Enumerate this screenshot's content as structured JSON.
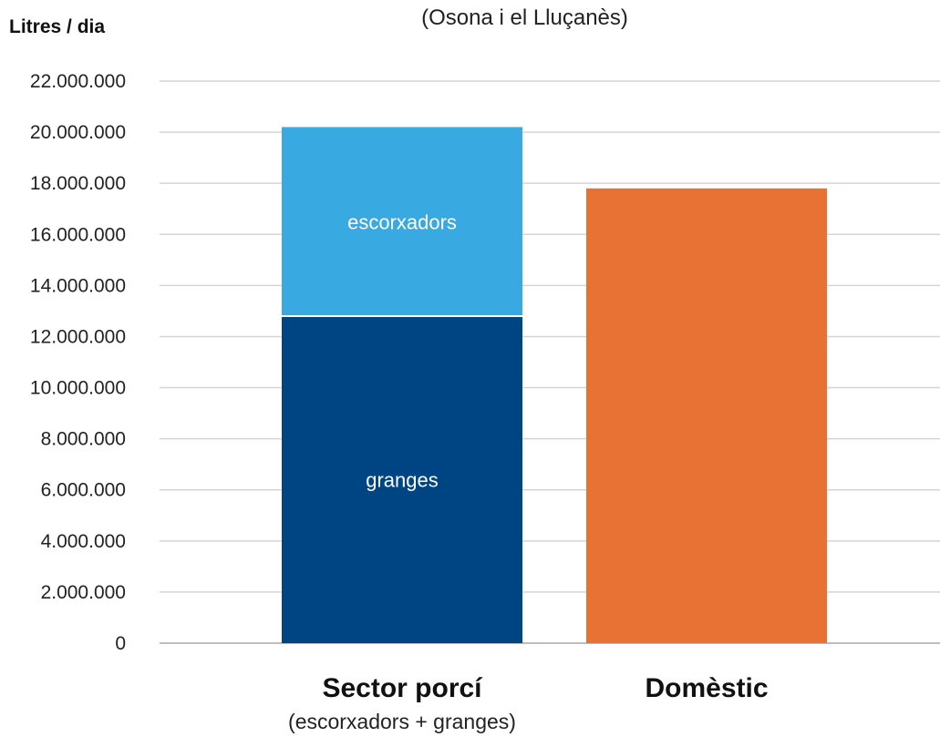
{
  "chart_data": {
    "type": "bar",
    "stacked": true,
    "subtitle": "(Osona i el Lluçanès)",
    "ylabel": "Litres / dia",
    "ylim": [
      0,
      22000000
    ],
    "yticks": [
      0,
      2000000,
      4000000,
      6000000,
      8000000,
      10000000,
      12000000,
      14000000,
      16000000,
      18000000,
      20000000,
      22000000
    ],
    "ytick_labels": [
      "0",
      "2.000.000",
      "4.000.000",
      "6.000.000",
      "8.000.000",
      "10.000.000",
      "12.000.000",
      "14.000.000",
      "16.000.000",
      "18.000.000",
      "20.000.000",
      "22.000.000"
    ],
    "grid": true,
    "categories": [
      "Sector porcí",
      "Domèstic"
    ],
    "category_sublabels": [
      "(escorxadors + granges)",
      ""
    ],
    "bars": [
      {
        "category": "Sector porcí",
        "segments": [
          {
            "label": "granges",
            "value": 12800000,
            "color": "#004583"
          },
          {
            "label": "escorxadors",
            "value": 7400000,
            "color": "#38a9e1"
          }
        ]
      },
      {
        "category": "Domèstic",
        "segments": [
          {
            "label": "",
            "value": 17800000,
            "color": "#e87234"
          }
        ]
      }
    ],
    "colors": {
      "grid": "#d4d4d4",
      "axis": "#bdbdbd"
    }
  }
}
